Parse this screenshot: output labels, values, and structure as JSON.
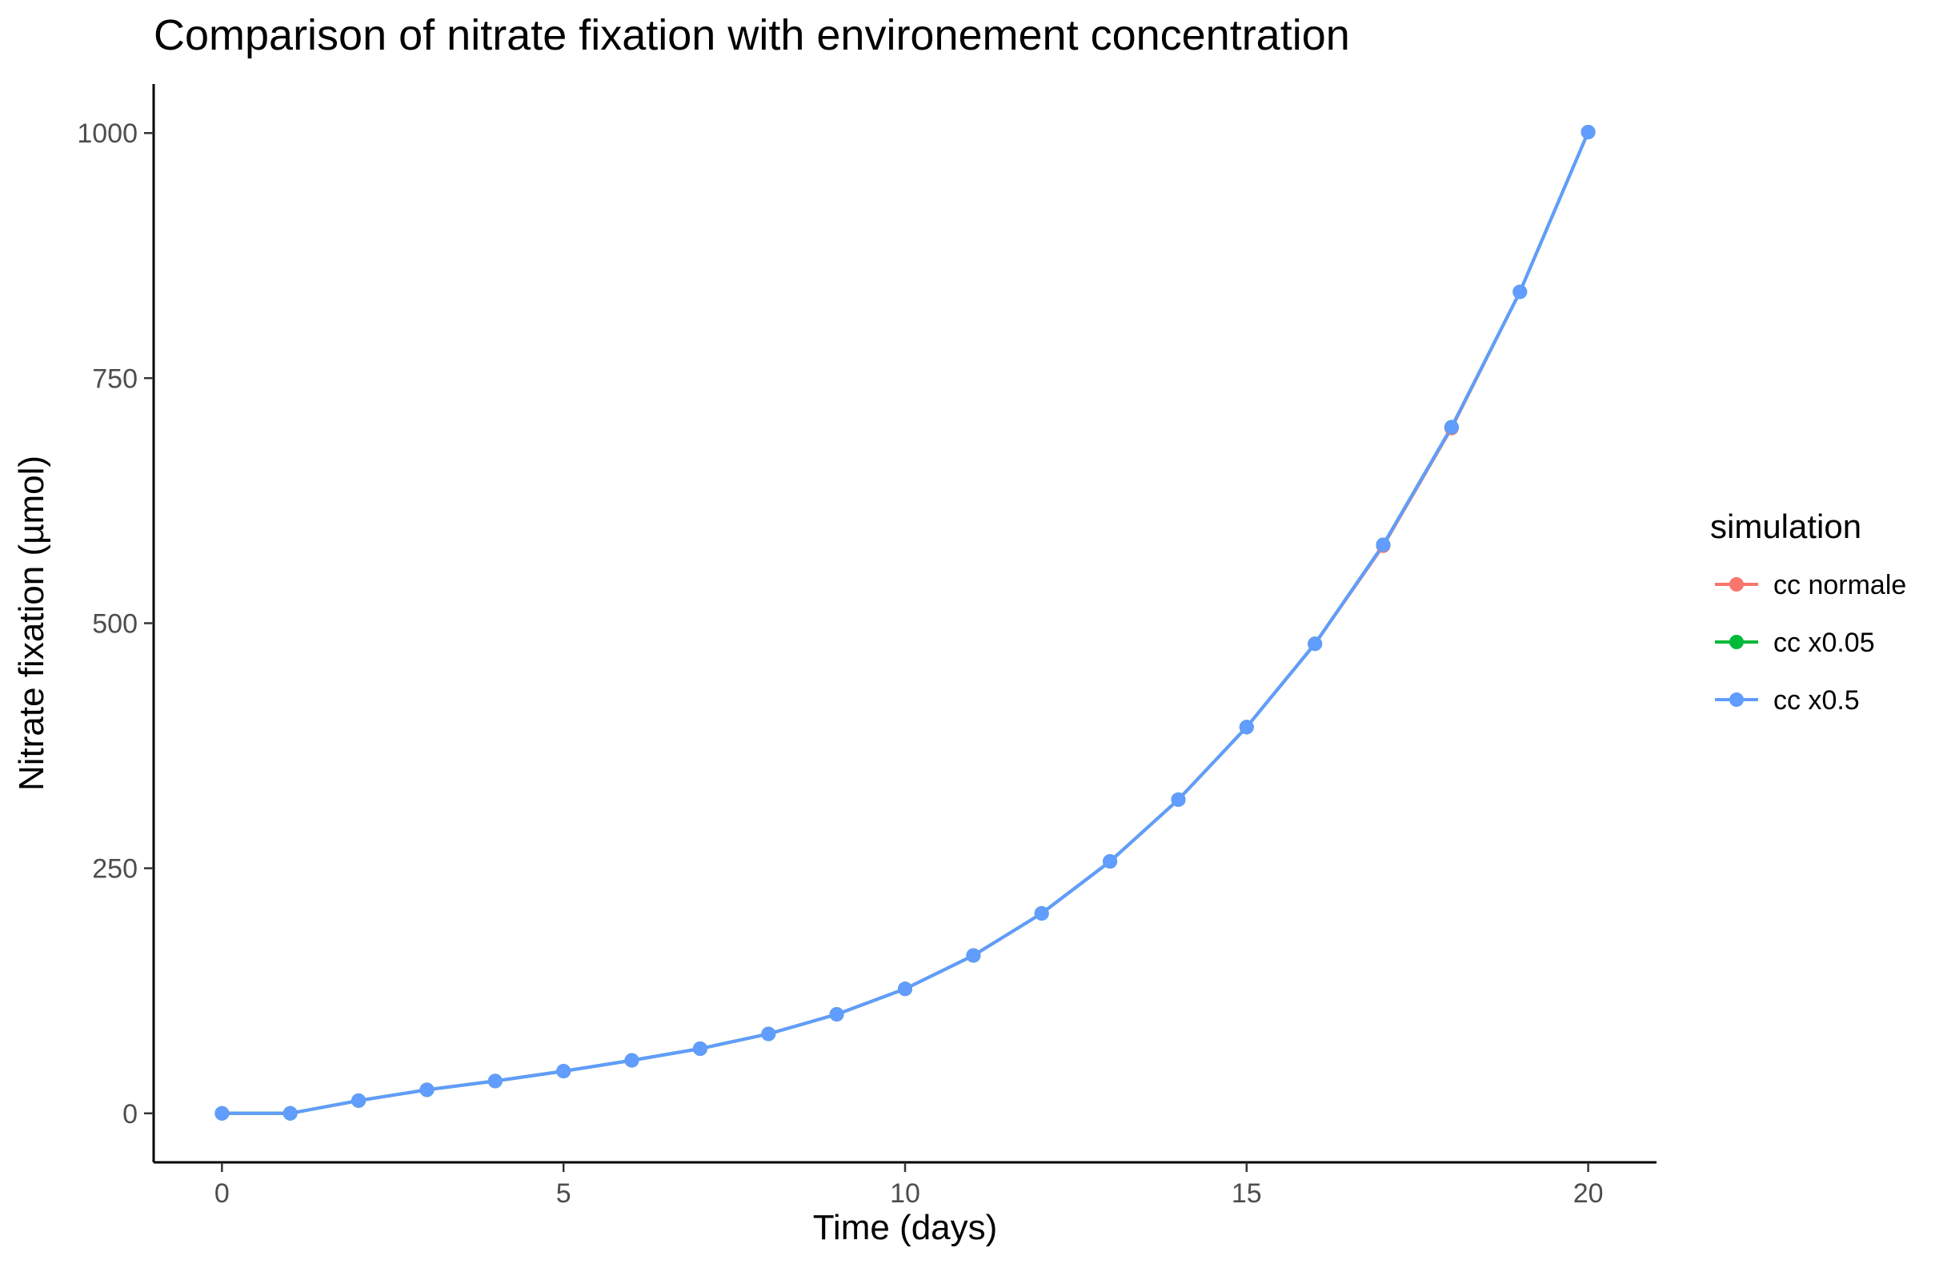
{
  "chart_data": {
    "type": "line",
    "title": "Comparison of nitrate fixation with environement concentration",
    "xlabel": "Time (days)",
    "ylabel": "Nitrate fixation (µmol)",
    "xlim": [
      -1,
      21
    ],
    "ylim": [
      -50,
      1050
    ],
    "xticks": [
      0,
      5,
      10,
      15,
      20
    ],
    "yticks": [
      0,
      250,
      500,
      750,
      1000
    ],
    "grid": false,
    "legend": {
      "title": "simulation",
      "position": "right"
    },
    "x": [
      0,
      1,
      2,
      3,
      4,
      5,
      6,
      7,
      8,
      9,
      10,
      11,
      12,
      13,
      14,
      15,
      16,
      17,
      18,
      19,
      20
    ],
    "series": [
      {
        "name": "cc normale",
        "color": "#F8766D",
        "values": [
          0,
          0,
          13,
          24,
          33,
          43,
          54,
          66,
          81,
          101,
          127,
          161,
          204,
          257,
          320,
          394,
          479,
          579,
          699,
          838,
          1001
        ]
      },
      {
        "name": "cc x0.05",
        "color": "#00BA38",
        "values": [
          0,
          0,
          13,
          24,
          33,
          43,
          54,
          66,
          81,
          101,
          127,
          161,
          204,
          257,
          320,
          394,
          479,
          580,
          700,
          838,
          1001
        ]
      },
      {
        "name": "cc x0.5",
        "color": "#619CFF",
        "values": [
          0,
          0,
          13,
          24,
          33,
          43,
          54,
          66,
          81,
          101,
          127,
          161,
          204,
          257,
          320,
          394,
          479,
          580,
          700,
          838,
          1001
        ]
      }
    ]
  }
}
